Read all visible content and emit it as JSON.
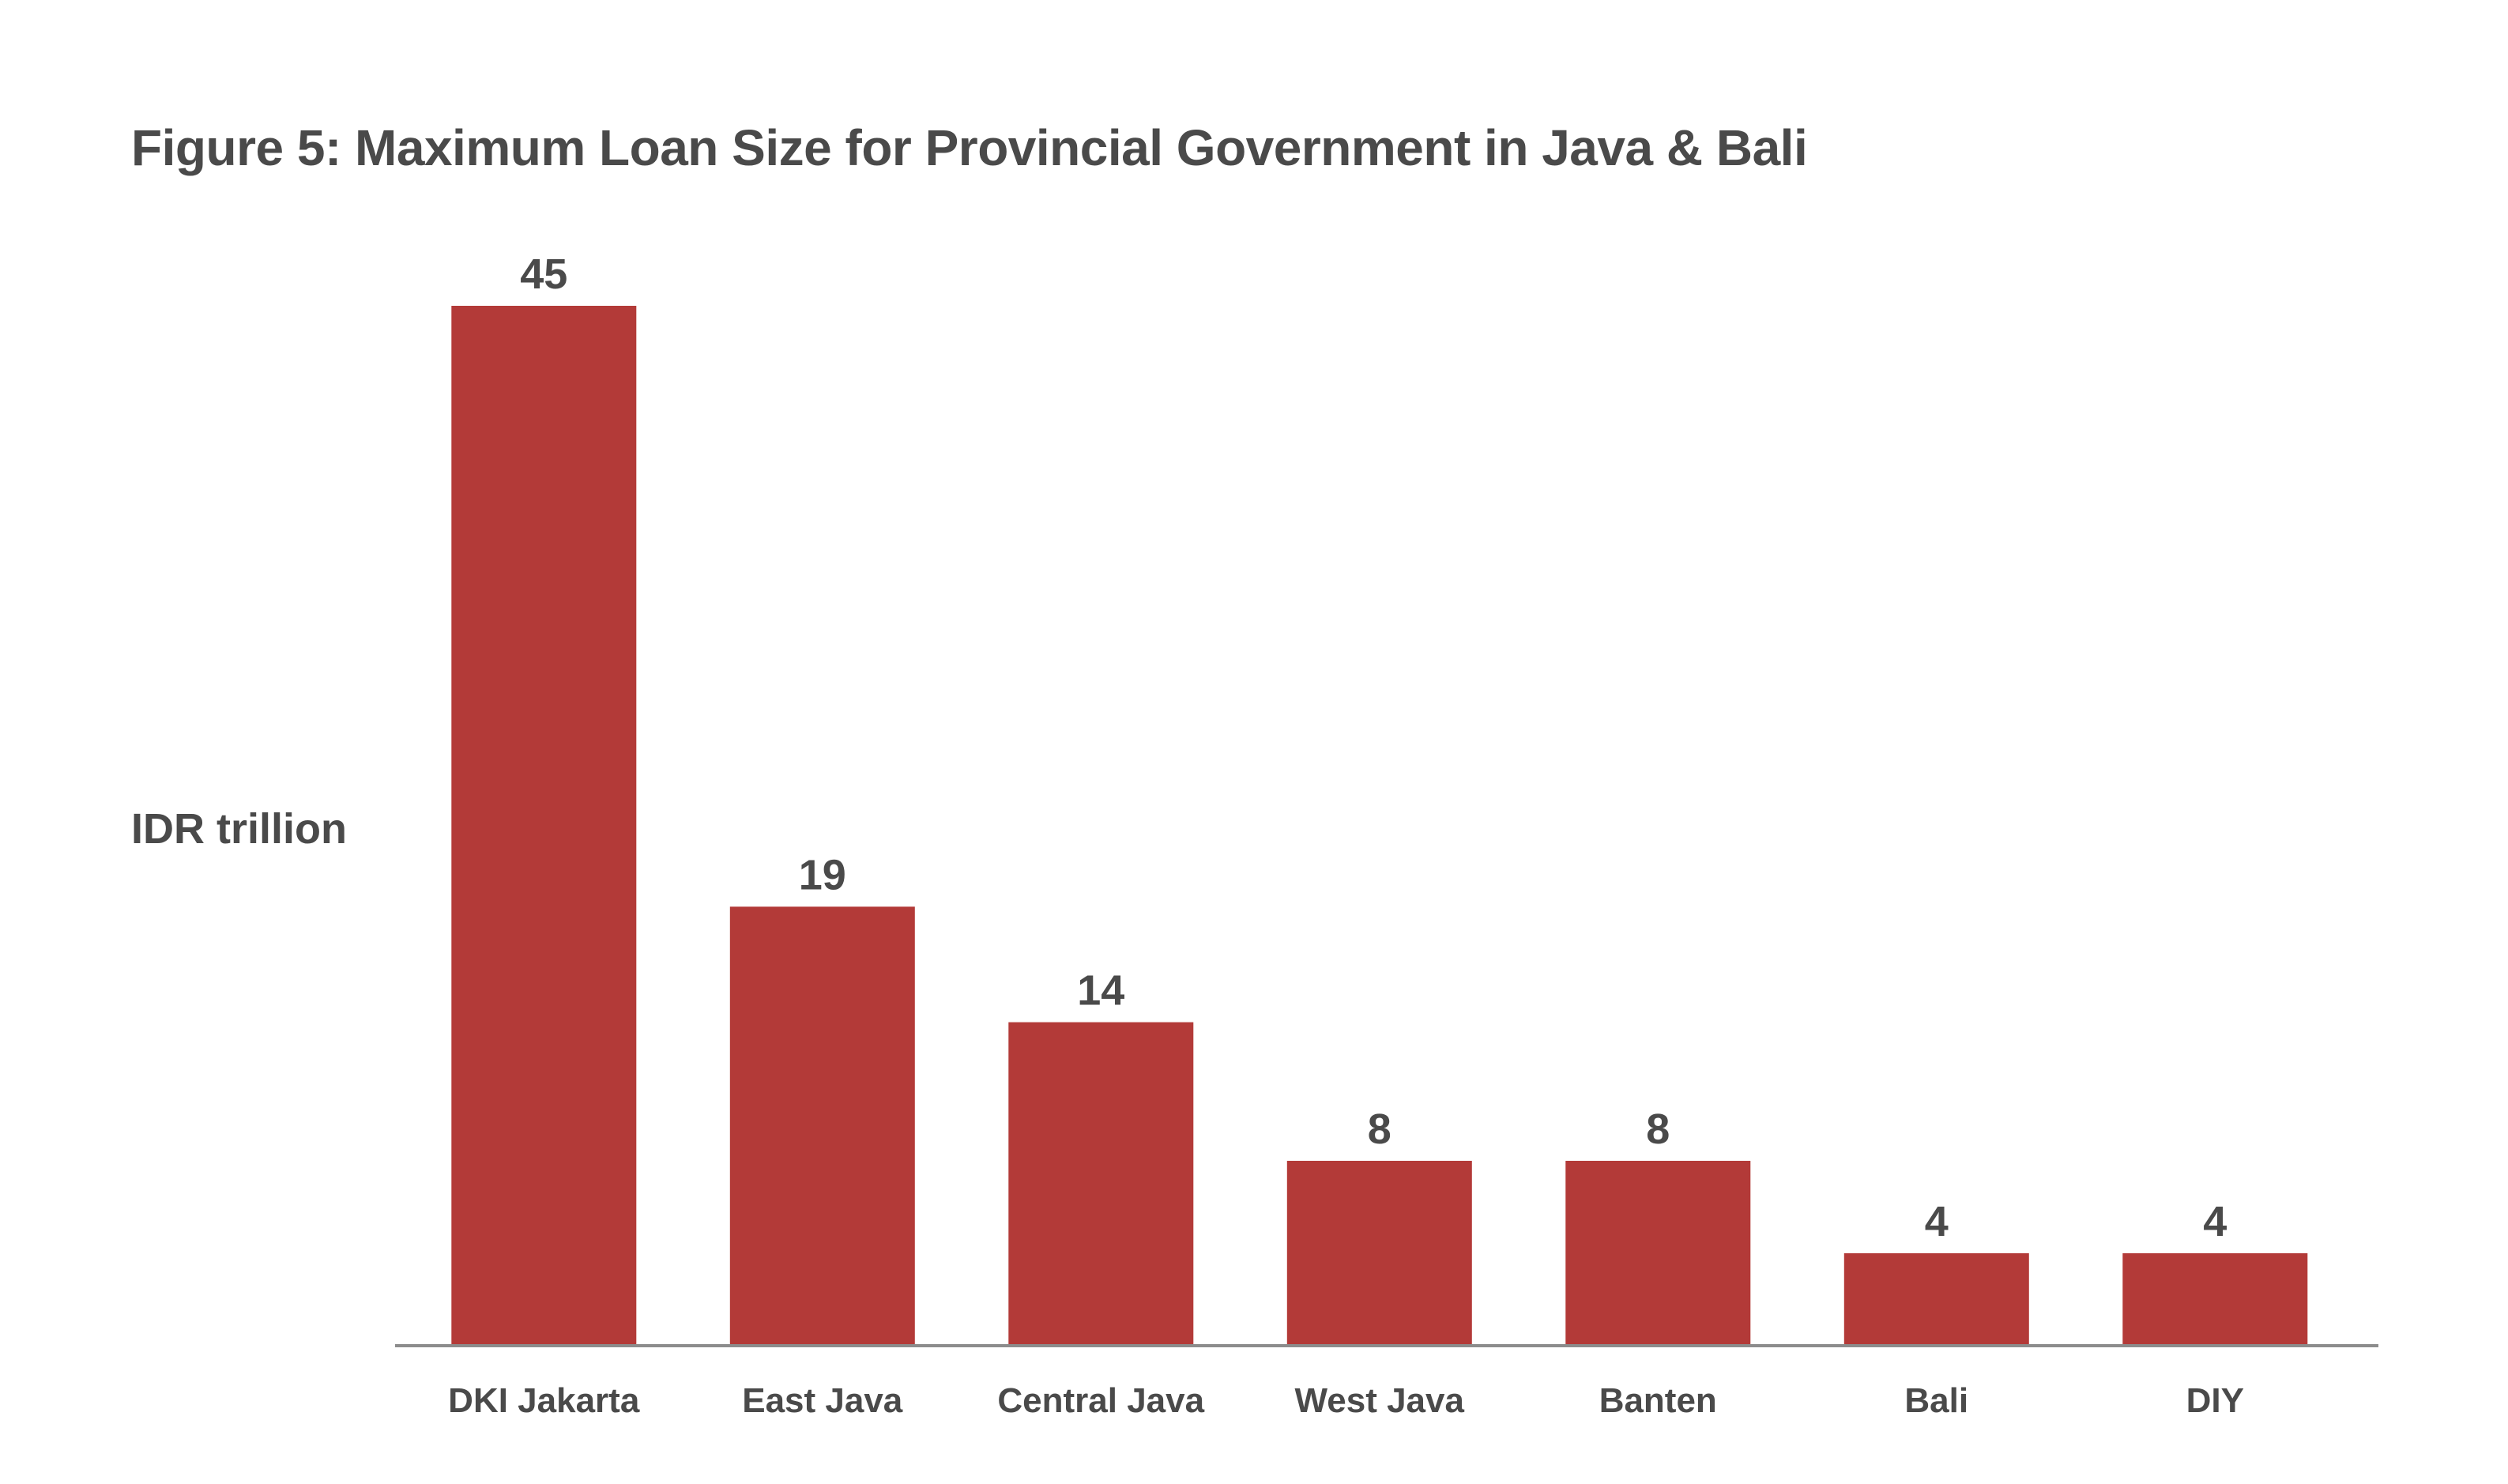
{
  "chart_data": {
    "type": "bar",
    "title": "Figure 5: Maximum Loan Size for Provincial Government in Java & Bali",
    "ylabel": "IDR trillion",
    "xlabel": "",
    "categories": [
      "DKI Jakarta",
      "East Java",
      "Central Java",
      "West Java",
      "Banten",
      "Bali",
      "DIY"
    ],
    "values": [
      45,
      19,
      14,
      8,
      8,
      4,
      4
    ],
    "data_labels": [
      "45",
      "19",
      "14",
      "8",
      "8",
      "4",
      "4"
    ],
    "ylim": [
      0,
      45
    ],
    "grid": false,
    "legend": "none",
    "colors": {
      "bar": "#b33a38",
      "axis": "#8c8c8c",
      "text": "#4a4a4a"
    }
  }
}
